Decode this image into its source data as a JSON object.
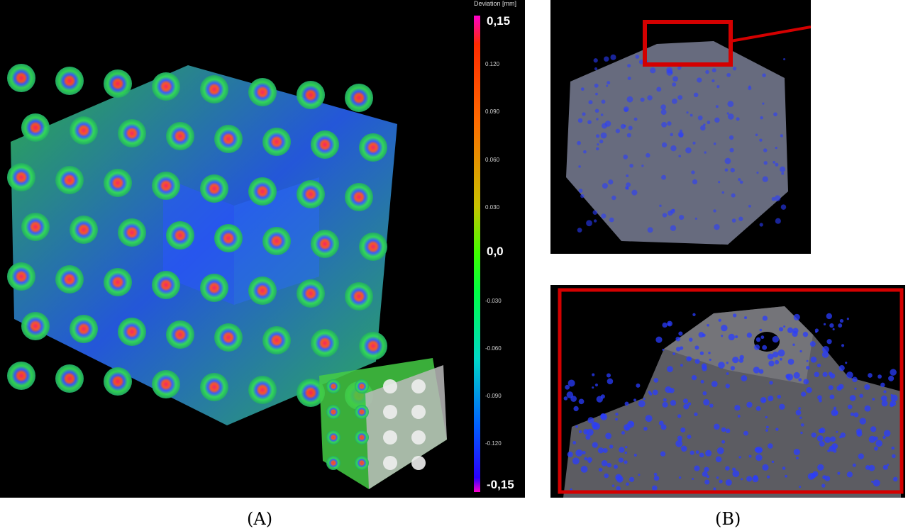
{
  "captions": {
    "a": "(A)",
    "b": "(B)"
  },
  "scale": {
    "title": "Deviation [mm]",
    "top": "0,15",
    "t1": "0.120",
    "t2": "0.090",
    "t3": "0.060",
    "t4": "0.030",
    "zero": "0,0",
    "t5": "-0.030",
    "t6": "-0.060",
    "t7": "-0.090",
    "t8": "-0.120",
    "bottom": "-0,15"
  },
  "colors": {
    "highlight_box": "#d40000",
    "point_blue": "#2a3cff"
  }
}
